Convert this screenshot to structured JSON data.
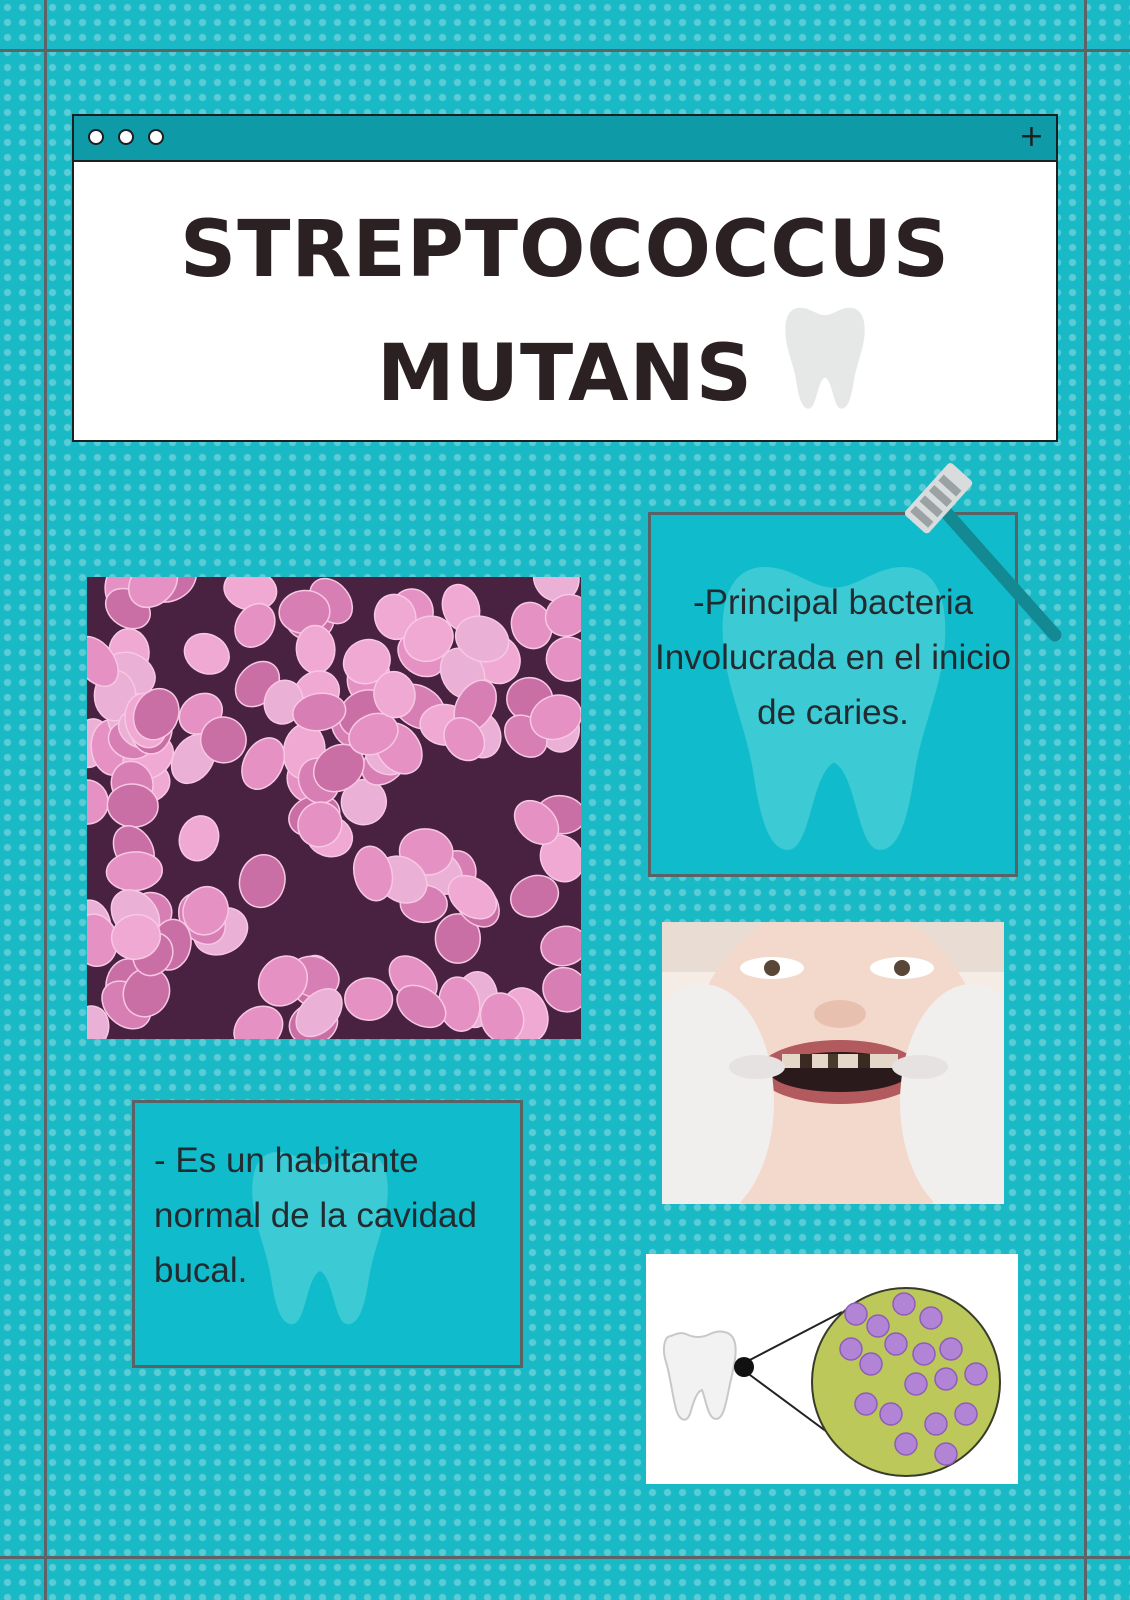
{
  "title": {
    "line1": "STREPTOCOCCUS",
    "line2": "MUTANS"
  },
  "boxes": {
    "right_text": "-Principal bacteria Involucrada en el inicio de caries.",
    "left_text": "- Es un habitante normal de la cavidad bucal."
  },
  "colors": {
    "background": "#1ab9c6",
    "box": "#10bccb",
    "title_bar": "#0e9aa6",
    "bacteria": "#d77fb4",
    "diagram_bacteria": "#b184d6"
  },
  "icons": [
    "window-dots-icon",
    "plus-icon",
    "tooth-icon",
    "toothbrush-icon"
  ]
}
